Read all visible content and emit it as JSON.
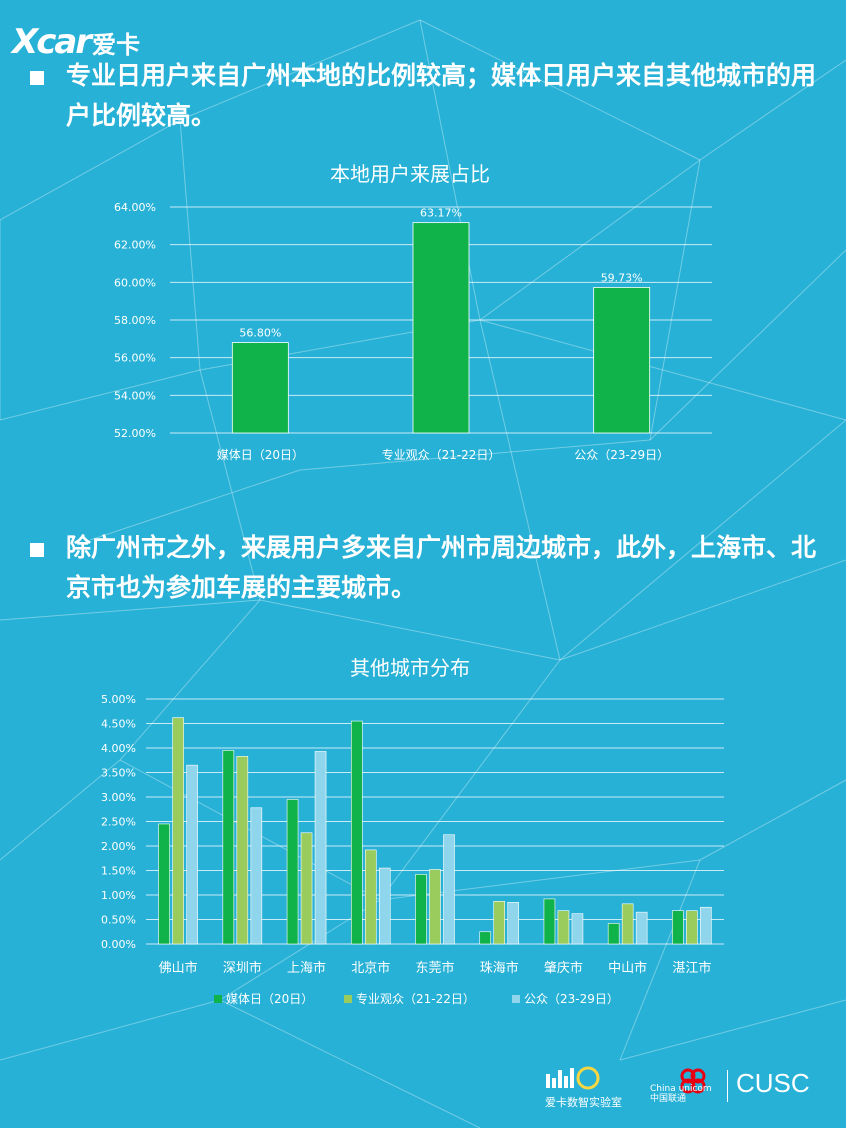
{
  "brand": {
    "logo_text": "Xcar",
    "logo_cn": "爱卡"
  },
  "bullets": [
    "专业日用户来自广州本地的比例较高；媒体日用户来自其他城市的用户比例较高。",
    "除广州市之外，来展用户多来自广州市周边城市，此外，上海市、北京市也为参加车展的主要城市。"
  ],
  "colors": {
    "background": "#27b1d6",
    "series1": "#10b34a",
    "series2": "#99cc5c",
    "series3": "#8fd6ec"
  },
  "chart_data": [
    {
      "type": "bar",
      "title": "本地用户来展占比",
      "categories": [
        "媒体日（20日）",
        "专业观众（21-22日）",
        "公众（23-29日）"
      ],
      "values": [
        56.8,
        63.17,
        59.73
      ],
      "value_labels": [
        "56.80%",
        "63.17%",
        "59.73%"
      ],
      "ylim": [
        52,
        64
      ],
      "yticks": [
        "52.00%",
        "54.00%",
        "56.00%",
        "58.00%",
        "60.00%",
        "62.00%",
        "64.00%"
      ],
      "grid": true,
      "legend": "none"
    },
    {
      "type": "bar",
      "title": "其他城市分布",
      "categories": [
        "佛山市",
        "深圳市",
        "上海市",
        "北京市",
        "东莞市",
        "珠海市",
        "肇庆市",
        "中山市",
        "湛江市"
      ],
      "series": [
        {
          "name": "媒体日（20日）",
          "values": [
            2.45,
            3.95,
            2.95,
            4.55,
            1.42,
            0.25,
            0.92,
            0.42,
            0.68
          ]
        },
        {
          "name": "专业观众（21-22日）",
          "values": [
            4.62,
            3.83,
            2.27,
            1.92,
            1.52,
            0.87,
            0.68,
            0.82,
            0.68
          ]
        },
        {
          "name": "公众（23-29日）",
          "values": [
            3.65,
            2.78,
            3.93,
            1.55,
            2.23,
            0.85,
            0.62,
            0.65,
            0.75
          ]
        }
      ],
      "ylim": [
        0,
        5
      ],
      "yticks": [
        "0.00%",
        "0.50%",
        "1.00%",
        "1.50%",
        "2.00%",
        "2.50%",
        "3.00%",
        "3.50%",
        "4.00%",
        "4.50%",
        "5.00%"
      ],
      "grid": true,
      "legend": "bottom"
    }
  ],
  "footer": {
    "lab_name": "爱卡数智实验室",
    "cu_text_en": "China unicom",
    "cu_text_cn": "中国联通",
    "org": "CUSC"
  }
}
